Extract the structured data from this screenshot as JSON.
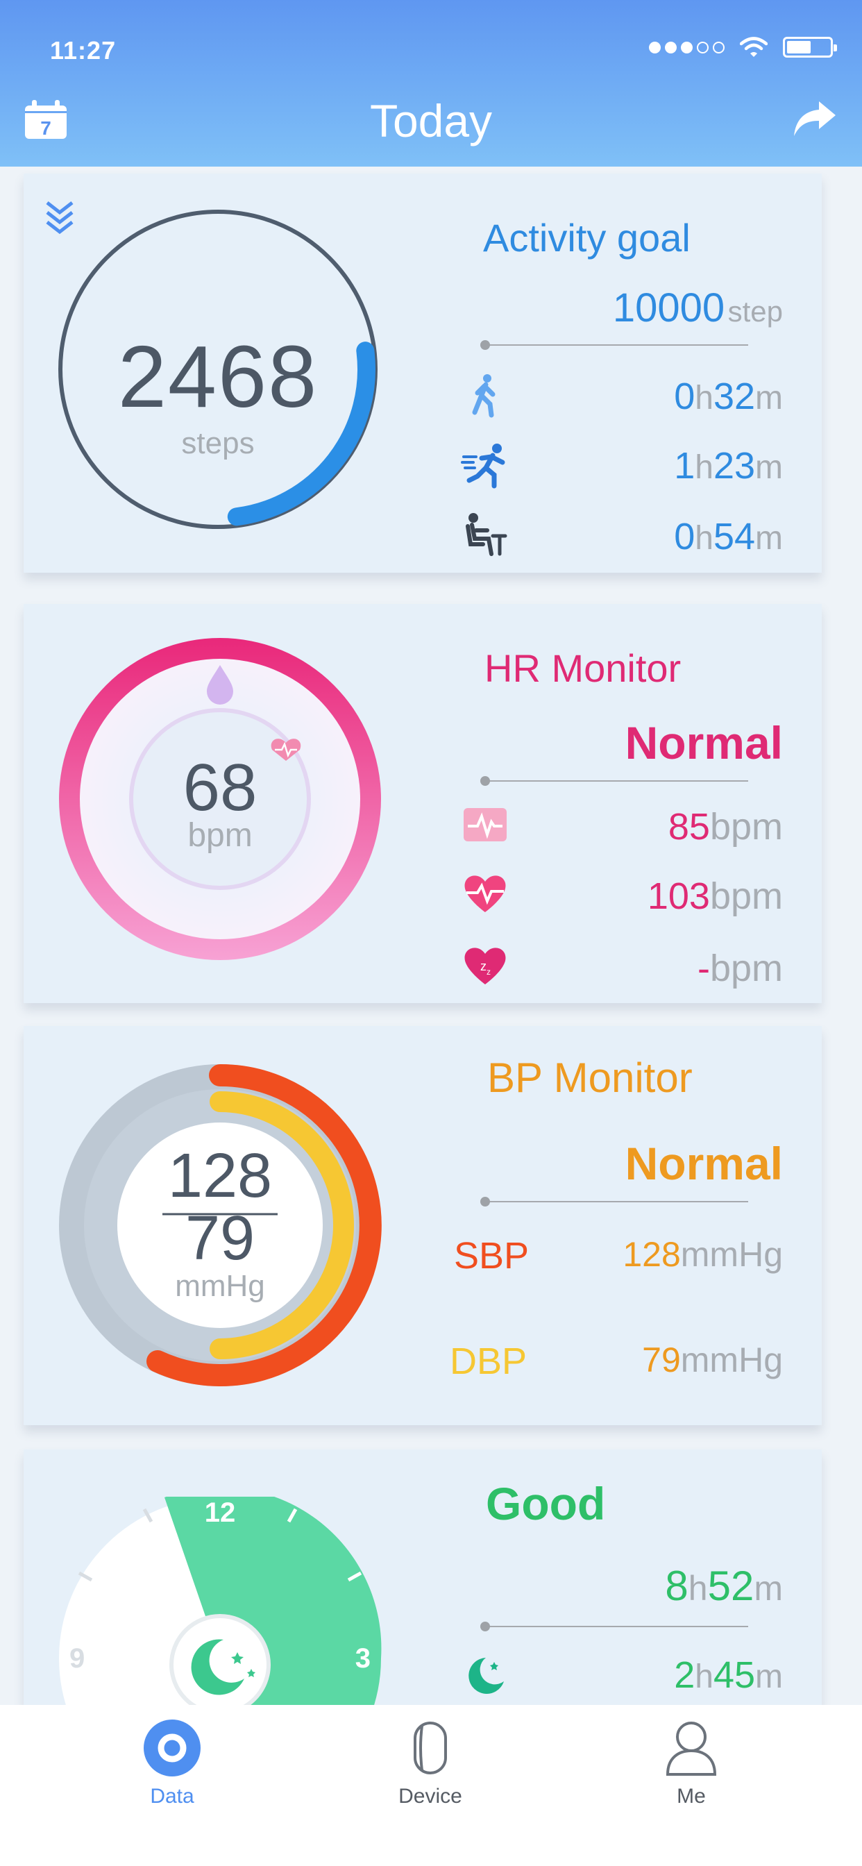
{
  "status_bar": {
    "time": "11:27"
  },
  "header": {
    "title": "Today",
    "calendar_day": "7"
  },
  "activity": {
    "steps": "2468",
    "steps_unit": "steps",
    "goal_title": "Activity goal",
    "goal_value": "10000",
    "goal_unit": "step",
    "walk": {
      "h": "0",
      "m": "32"
    },
    "run": {
      "h": "1",
      "m": "23"
    },
    "sit": {
      "h": "0",
      "m": "54"
    },
    "progress_fraction": 0.25
  },
  "hr": {
    "value": "68",
    "unit": "bpm",
    "title": "HR Monitor",
    "status": "Normal",
    "resting": "85",
    "max": "103",
    "sleep": "-",
    "bpm_label": "bpm"
  },
  "bp": {
    "systolic": "128",
    "diastolic": "79",
    "unit": "mmHg",
    "title": "BP Monitor",
    "status": "Normal",
    "sbp_label": "SBP",
    "dbp_label": "DBP",
    "sbp_value": "128",
    "dbp_value": "79"
  },
  "sleep": {
    "status": "Good",
    "total_h": "8",
    "total_m": "52",
    "light_h": "2",
    "light_m": "45",
    "dial_12": "12",
    "dial_3": "3",
    "dial_9": "9"
  },
  "tabs": [
    {
      "label": "Data",
      "active": true
    },
    {
      "label": "Device",
      "active": false
    },
    {
      "label": "Me",
      "active": false
    }
  ],
  "colors": {
    "blue": "#3a8de0",
    "pink": "#e52878",
    "orange": "#ec9a1d",
    "red_orange": "#f04e1f",
    "yellow": "#f6c733",
    "green": "#2ebf68"
  }
}
